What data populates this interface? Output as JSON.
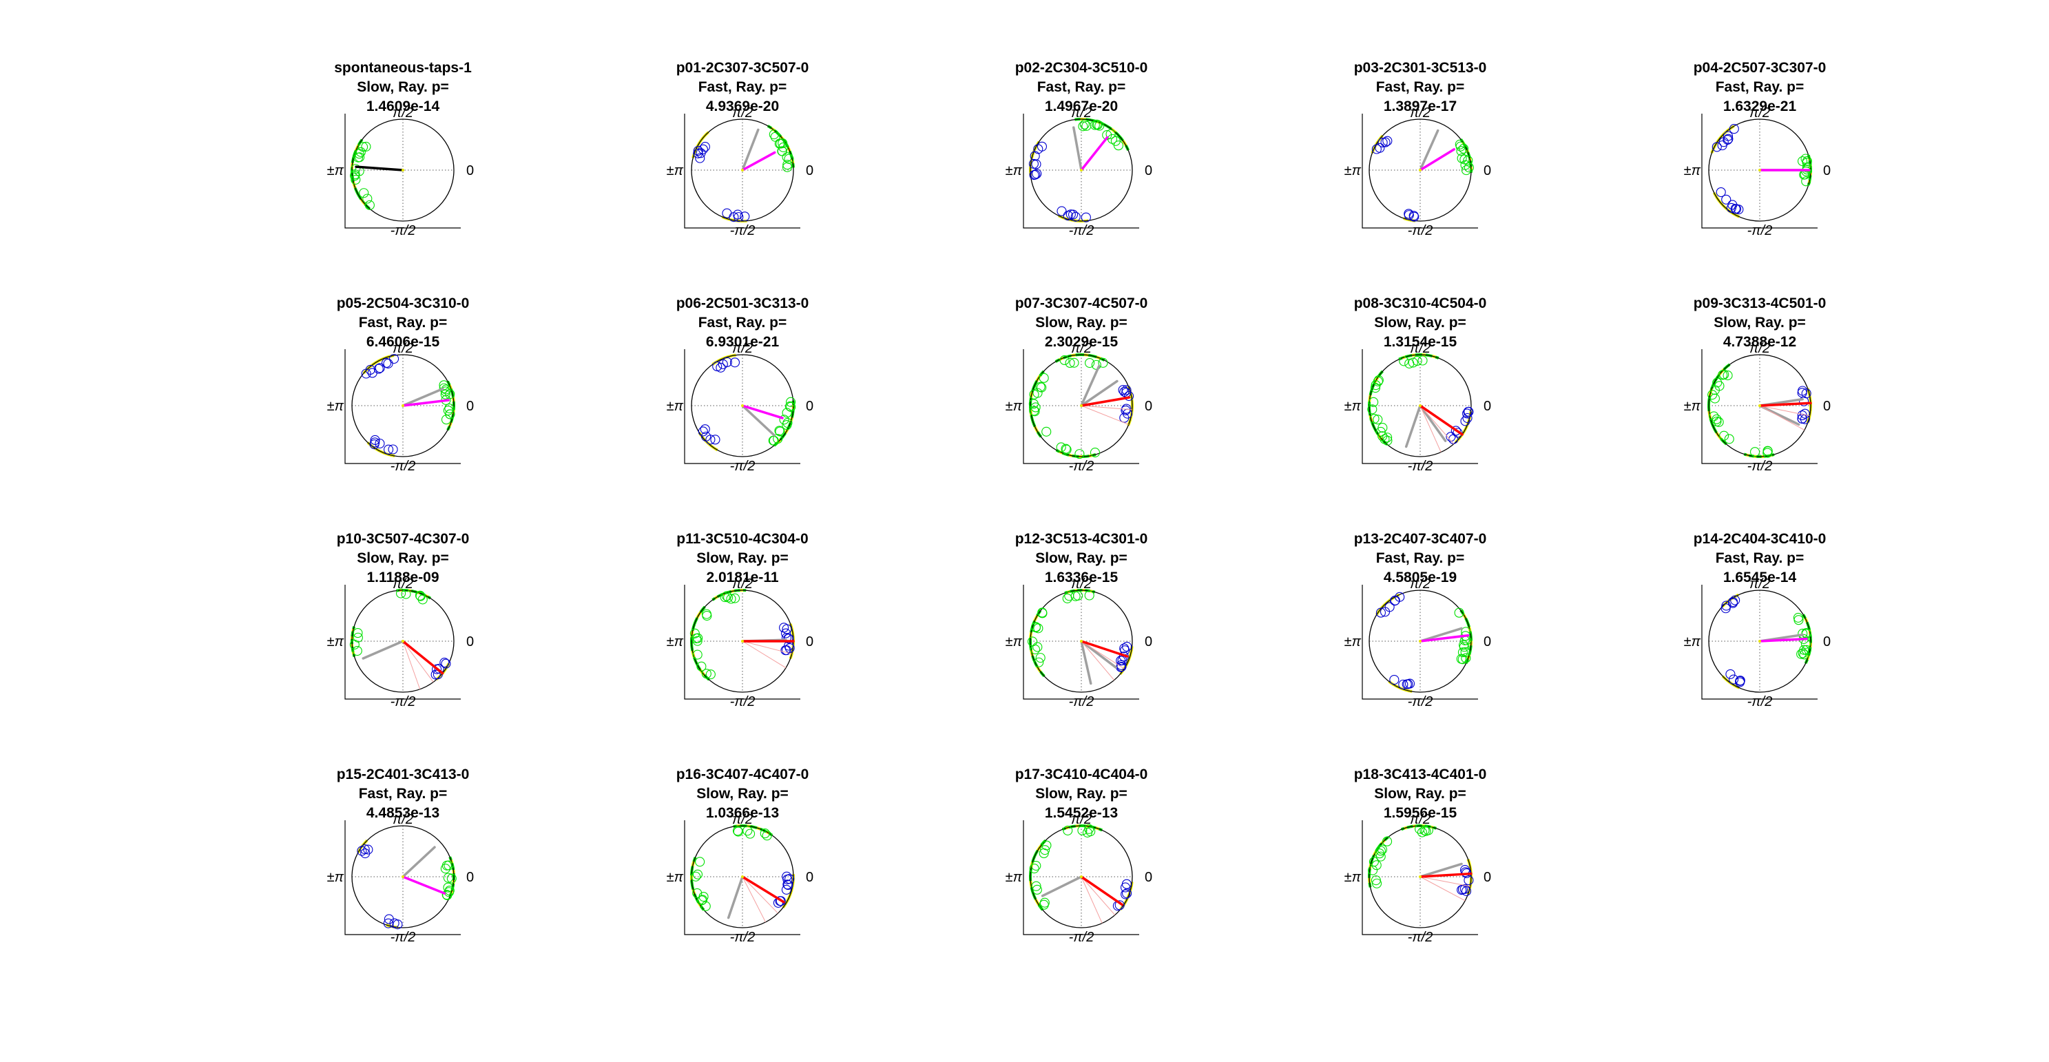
{
  "figure": {
    "axis_labels": {
      "top": "π/2",
      "bottom": "-π/2",
      "left": "±π",
      "right": "0"
    },
    "colors": {
      "circle": "#000000",
      "marker_green": "#00e000",
      "marker_yellow": "#e8e800",
      "marker_blue": "#0000d0",
      "mean_black": "#000000",
      "mean_magenta": "#ff00ff",
      "mean_red": "#ff0000",
      "mean_gray": "#a0a0a0"
    }
  },
  "chart_data": [
    {
      "type": "scatter",
      "title": "spontaneous-taps-1",
      "condition": "Slow, Ray. p=",
      "pvalue": "1.4609e-14",
      "mean_color": "black",
      "mean_angle": 3.07,
      "mean_length": 0.92,
      "gray_angles": [],
      "clusters": [
        {
          "center": 3.25,
          "spread": 0.75,
          "color": "green",
          "count": 14
        }
      ]
    },
    {
      "type": "scatter",
      "title": "p01-2C307-3C507-0",
      "condition": "Fast, Ray. p=",
      "pvalue": "4.9369e-20",
      "mean_color": "magenta",
      "mean_angle": 0.5,
      "mean_length": 0.72,
      "gray_angles": [
        1.2
      ],
      "clusters": [
        {
          "center": 0.55,
          "spread": 0.5,
          "color": "green",
          "count": 12
        },
        {
          "center": 2.6,
          "spread": 0.3,
          "color": "blue",
          "count": 6
        },
        {
          "center": 4.55,
          "spread": 0.25,
          "color": "blue",
          "count": 5
        }
      ]
    },
    {
      "type": "scatter",
      "title": "p02-2C304-3C510-0",
      "condition": "Fast, Ray. p=",
      "pvalue": "1.4967e-20",
      "mean_color": "magenta",
      "mean_angle": 0.9,
      "mean_length": 0.82,
      "gray_angles": [
        1.75
      ],
      "clusters": [
        {
          "center": 1.05,
          "spread": 0.65,
          "color": "green",
          "count": 12
        },
        {
          "center": 2.9,
          "spread": 0.35,
          "color": "blue",
          "count": 8
        },
        {
          "center": 4.55,
          "spread": 0.3,
          "color": "blue",
          "count": 6
        }
      ]
    },
    {
      "type": "scatter",
      "title": "p03-2C301-3C513-0",
      "condition": "Fast, Ray. p=",
      "pvalue": "1.3897e-17",
      "mean_color": "magenta",
      "mean_angle": 0.55,
      "mean_length": 0.78,
      "gray_angles": [
        1.15
      ],
      "clusters": [
        {
          "center": 0.3,
          "spread": 0.35,
          "color": "green",
          "count": 10
        },
        {
          "center": 2.6,
          "spread": 0.2,
          "color": "blue",
          "count": 5
        },
        {
          "center": 4.5,
          "spread": 0.12,
          "color": "blue",
          "count": 4
        }
      ]
    },
    {
      "type": "scatter",
      "title": "p04-2C507-3C307-0",
      "condition": "Fast, Ray. p=",
      "pvalue": "1.6329e-21",
      "mean_color": "magenta",
      "mean_angle": 0.0,
      "mean_length": 0.97,
      "gray_angles": [
        0.0
      ],
      "clusters": [
        {
          "center": 0.0,
          "spread": 0.3,
          "color": "green",
          "count": 10
        },
        {
          "center": 2.45,
          "spread": 0.35,
          "color": "blue",
          "count": 7
        },
        {
          "center": 3.95,
          "spread": 0.35,
          "color": "blue",
          "count": 7
        }
      ]
    },
    {
      "type": "scatter",
      "title": "p05-2C504-3C310-0",
      "condition": "Fast, Ray. p=",
      "pvalue": "6.4606e-15",
      "mean_color": "magenta",
      "mean_angle": 0.12,
      "mean_length": 0.9,
      "gray_angles": [
        0.4
      ],
      "clusters": [
        {
          "center": 0.0,
          "spread": 0.5,
          "color": "green",
          "count": 12
        },
        {
          "center": 2.1,
          "spread": 0.35,
          "color": "blue",
          "count": 8
        },
        {
          "center": 4.25,
          "spread": 0.3,
          "color": "blue",
          "count": 6
        }
      ]
    },
    {
      "type": "scatter",
      "title": "p06-2C501-3C313-0",
      "condition": "Fast, Ray. p=",
      "pvalue": "6.9301e-21",
      "mean_color": "magenta",
      "mean_angle": -0.3,
      "mean_length": 0.82,
      "gray_angles": [
        -0.75
      ],
      "clusters": [
        {
          "center": -0.4,
          "spread": 0.5,
          "color": "green",
          "count": 12
        },
        {
          "center": 1.95,
          "spread": 0.25,
          "color": "blue",
          "count": 5
        },
        {
          "center": 3.95,
          "spread": 0.25,
          "color": "blue",
          "count": 5
        }
      ]
    },
    {
      "type": "scatter",
      "title": "p07-3C307-4C507-0",
      "condition": "Slow, Ray. p=",
      "pvalue": "2.3029e-15",
      "mean_color": "red",
      "mean_angle": 0.17,
      "mean_length": 0.95,
      "gray_angles": [
        1.15,
        0.6
      ],
      "clusters": [
        {
          "center": 0.0,
          "spread": 0.4,
          "color": "blue",
          "count": 9
        },
        {
          "center": 3.1,
          "spread": 0.7,
          "color": "green",
          "count": 10
        },
        {
          "center": 1.6,
          "spread": 0.5,
          "color": "green",
          "count": 6
        },
        {
          "center": 4.6,
          "spread": 0.4,
          "color": "green",
          "count": 5
        }
      ]
    },
    {
      "type": "scatter",
      "title": "p08-3C310-4C504-0",
      "condition": "Slow, Ray. p=",
      "pvalue": "1.3154e-15",
      "mean_color": "red",
      "mean_angle": -0.6,
      "mean_length": 1.0,
      "gray_angles": [
        -1.9,
        -0.95
      ],
      "clusters": [
        {
          "center": -0.45,
          "spread": 0.35,
          "color": "blue",
          "count": 9
        },
        {
          "center": 3.2,
          "spread": 0.8,
          "color": "green",
          "count": 14
        },
        {
          "center": 1.6,
          "spread": 0.4,
          "color": "green",
          "count": 5
        }
      ]
    },
    {
      "type": "scatter",
      "title": "p09-3C313-4C501-0",
      "condition": "Slow, Ray. p=",
      "pvalue": "4.7388e-12",
      "mean_color": "red",
      "mean_angle": 0.05,
      "mean_length": 1.0,
      "gray_angles": [
        0.15,
        -0.45
      ],
      "clusters": [
        {
          "center": 0.0,
          "spread": 0.35,
          "color": "blue",
          "count": 9
        },
        {
          "center": 3.1,
          "spread": 0.9,
          "color": "green",
          "count": 14
        },
        {
          "center": 4.7,
          "spread": 0.3,
          "color": "green",
          "count": 4
        }
      ]
    },
    {
      "type": "scatter",
      "title": "p10-3C507-4C307-0",
      "condition": "Slow, Ray. p=",
      "pvalue": "1.1188e-09",
      "mean_color": "red",
      "mean_angle": -0.68,
      "mean_length": 1.0,
      "gray_angles": [
        3.55
      ],
      "clusters": [
        {
          "center": -0.65,
          "spread": 0.2,
          "color": "blue",
          "count": 6
        },
        {
          "center": 1.35,
          "spread": 0.35,
          "color": "green",
          "count": 5
        },
        {
          "center": 3.15,
          "spread": 0.3,
          "color": "green",
          "count": 4
        }
      ]
    },
    {
      "type": "scatter",
      "title": "p11-3C510-4C304-0",
      "condition": "Slow, Ray. p=",
      "pvalue": "2.0181e-11",
      "mean_color": "red",
      "mean_angle": 0.0,
      "mean_length": 1.0,
      "gray_angles": [
        0.03
      ],
      "clusters": [
        {
          "center": 0.0,
          "spread": 0.35,
          "color": "blue",
          "count": 10
        },
        {
          "center": 3.2,
          "spread": 0.8,
          "color": "green",
          "count": 10
        },
        {
          "center": 1.85,
          "spread": 0.35,
          "color": "green",
          "count": 5
        }
      ]
    },
    {
      "type": "scatter",
      "title": "p12-3C513-4C301-0",
      "condition": "Slow, Ray. p=",
      "pvalue": "1.6336e-15",
      "mean_color": "red",
      "mean_angle": -0.32,
      "mean_length": 0.95,
      "gray_angles": [
        -1.35,
        -0.65
      ],
      "clusters": [
        {
          "center": -0.4,
          "spread": 0.3,
          "color": "blue",
          "count": 9
        },
        {
          "center": 3.2,
          "spread": 0.7,
          "color": "green",
          "count": 10
        },
        {
          "center": 1.6,
          "spread": 0.3,
          "color": "green",
          "count": 5
        }
      ]
    },
    {
      "type": "scatter",
      "title": "p13-2C407-3C407-0",
      "condition": "Fast, Ray. p=",
      "pvalue": "4.5805e-19",
      "mean_color": "magenta",
      "mean_angle": 0.12,
      "mean_length": 0.95,
      "gray_angles": [
        0.3
      ],
      "clusters": [
        {
          "center": 0.1,
          "spread": 0.55,
          "color": "green",
          "count": 12
        },
        {
          "center": 2.3,
          "spread": 0.3,
          "color": "blue",
          "count": 6
        },
        {
          "center": 4.3,
          "spread": 0.25,
          "color": "blue",
          "count": 5
        }
      ]
    },
    {
      "type": "scatter",
      "title": "p14-2C404-3C410-0",
      "condition": "Fast, Ray. p=",
      "pvalue": "1.6545e-14",
      "mean_color": "magenta",
      "mean_angle": 0.05,
      "mean_length": 0.92,
      "gray_angles": [
        0.15
      ],
      "clusters": [
        {
          "center": 0.05,
          "spread": 0.5,
          "color": "green",
          "count": 12
        },
        {
          "center": 2.2,
          "spread": 0.2,
          "color": "blue",
          "count": 5
        },
        {
          "center": 4.1,
          "spread": 0.2,
          "color": "blue",
          "count": 5
        }
      ]
    },
    {
      "type": "scatter",
      "title": "p15-2C401-3C413-0",
      "condition": "Fast, Ray. p=",
      "pvalue": "4.4853e-13",
      "mean_color": "magenta",
      "mean_angle": -0.38,
      "mean_length": 0.88,
      "gray_angles": [
        0.75
      ],
      "clusters": [
        {
          "center": 0.0,
          "spread": 0.4,
          "color": "green",
          "count": 10
        },
        {
          "center": 2.5,
          "spread": 0.15,
          "color": "blue",
          "count": 4
        },
        {
          "center": 4.5,
          "spread": 0.12,
          "color": "blue",
          "count": 4
        }
      ]
    },
    {
      "type": "scatter",
      "title": "p16-3C407-4C407-0",
      "condition": "Slow, Ray. p=",
      "pvalue": "1.0366e-13",
      "mean_color": "red",
      "mean_angle": -0.55,
      "mean_length": 0.95,
      "gray_angles": [
        -1.9
      ],
      "clusters": [
        {
          "center": -0.3,
          "spread": 0.35,
          "color": "blue",
          "count": 9
        },
        {
          "center": 3.3,
          "spread": 0.55,
          "color": "green",
          "count": 8
        },
        {
          "center": 1.35,
          "spread": 0.4,
          "color": "green",
          "count": 6
        }
      ]
    },
    {
      "type": "scatter",
      "title": "p17-3C410-4C404-0",
      "condition": "Slow, Ray. p=",
      "pvalue": "1.5452e-13",
      "mean_color": "red",
      "mean_angle": -0.6,
      "mean_length": 0.97,
      "gray_angles": [
        3.6
      ],
      "clusters": [
        {
          "center": -0.4,
          "spread": 0.3,
          "color": "blue",
          "count": 6
        },
        {
          "center": 3.1,
          "spread": 0.75,
          "color": "green",
          "count": 9
        },
        {
          "center": 1.55,
          "spread": 0.4,
          "color": "green",
          "count": 5
        }
      ]
    },
    {
      "type": "scatter",
      "title": "p18-3C413-4C401-0",
      "condition": "Slow, Ray. p=",
      "pvalue": "1.5956e-15",
      "mean_color": "red",
      "mean_angle": 0.06,
      "mean_length": 1.0,
      "gray_angles": [
        0.3
      ],
      "clusters": [
        {
          "center": 0.0,
          "spread": 0.35,
          "color": "blue",
          "count": 8
        },
        {
          "center": 2.8,
          "spread": 0.55,
          "color": "green",
          "count": 10
        },
        {
          "center": 1.6,
          "spread": 0.35,
          "color": "green",
          "count": 5
        }
      ]
    }
  ]
}
